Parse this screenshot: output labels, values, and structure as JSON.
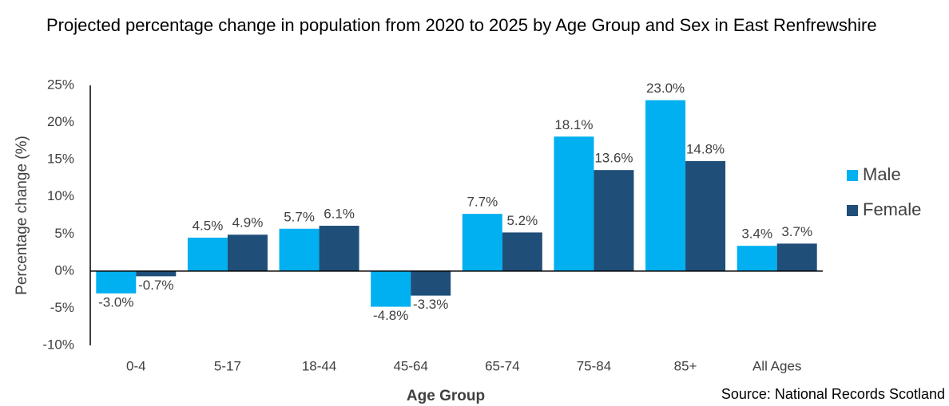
{
  "chart_data": {
    "type": "bar",
    "title": "Projected percentage change in population from 2020 to 2025 by Age Group and Sex in East Renfrewshire",
    "x_label": "Age Group",
    "y_label": "Percentage change (%)",
    "source": "Source: National Records Scotland",
    "categories": [
      "0-4",
      "5-17",
      "18-44",
      "45-64",
      "65-74",
      "75-84",
      "85+",
      "All Ages"
    ],
    "series": [
      {
        "name": "Male",
        "color": "#00b0f0",
        "values": [
          -3.0,
          4.5,
          5.7,
          -4.8,
          7.7,
          18.1,
          23.0,
          3.4
        ],
        "value_labels": [
          "-3.0%",
          "4.5%",
          "5.7%",
          "-4.8%",
          "7.7%",
          "18.1%",
          "23.0%",
          "3.4%"
        ]
      },
      {
        "name": "Female",
        "color": "#1f4e79",
        "values": [
          -0.7,
          4.9,
          6.1,
          -3.3,
          5.2,
          13.6,
          14.8,
          3.7
        ],
        "value_labels": [
          "-0.7%",
          "4.9%",
          "6.1%",
          "-3.3%",
          "5.2%",
          "13.6%",
          "14.8%",
          "3.7%"
        ]
      }
    ],
    "ylim": [
      -10,
      25
    ],
    "yticks": [
      {
        "value": -10,
        "label": "-10%"
      },
      {
        "value": -5,
        "label": "-5%"
      },
      {
        "value": 0,
        "label": "0%"
      },
      {
        "value": 5,
        "label": "5%"
      },
      {
        "value": 10,
        "label": "10%"
      },
      {
        "value": 15,
        "label": "15%"
      },
      {
        "value": 20,
        "label": "20%"
      },
      {
        "value": 25,
        "label": "25%"
      }
    ],
    "legend": "right",
    "grid": false
  }
}
